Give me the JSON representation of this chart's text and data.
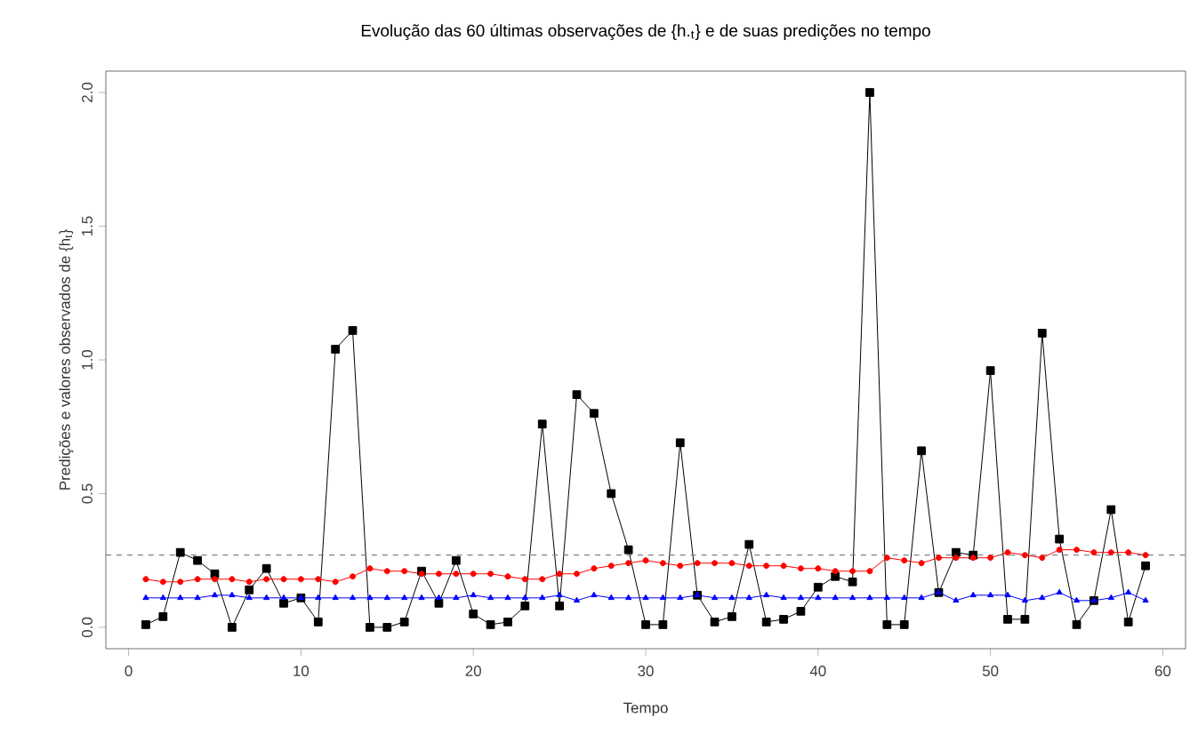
{
  "chart_data": {
    "type": "line",
    "title": "Evolução das 60 últimas observações de {h.$_{t}$} e de suas predições no tempo",
    "xlabel": "Tempo",
    "ylabel": "Predições e valores observados de {h$_{t}$}",
    "x": [
      1,
      2,
      3,
      4,
      5,
      6,
      7,
      8,
      9,
      10,
      11,
      12,
      13,
      14,
      15,
      16,
      17,
      18,
      19,
      20,
      21,
      22,
      23,
      24,
      25,
      26,
      27,
      28,
      29,
      30,
      31,
      32,
      33,
      34,
      35,
      36,
      37,
      38,
      39,
      40,
      41,
      42,
      43,
      44,
      45,
      46,
      47,
      48,
      49,
      50,
      51,
      52,
      53,
      54,
      55,
      56,
      57,
      58,
      59
    ],
    "series": [
      {
        "color": "#000000",
        "marker": "square",
        "values": [
          0.01,
          0.04,
          0.28,
          0.25,
          0.2,
          0.0,
          0.14,
          0.22,
          0.09,
          0.11,
          0.02,
          1.04,
          1.11,
          0.0,
          0.0,
          0.02,
          0.21,
          0.09,
          0.25,
          0.05,
          0.01,
          0.02,
          0.08,
          0.76,
          0.08,
          0.87,
          0.8,
          0.5,
          0.29,
          0.01,
          0.01,
          0.69,
          0.12,
          0.02,
          0.04,
          0.31,
          0.02,
          0.03,
          0.06,
          0.15,
          0.19,
          0.17,
          2.0,
          0.01,
          0.01,
          0.66,
          0.13,
          0.28,
          0.27,
          0.96,
          0.03,
          0.03,
          1.1,
          0.33,
          0.01,
          0.1,
          0.44,
          0.02,
          0.23
        ]
      },
      {
        "color": "#ff0000",
        "marker": "circle",
        "values": [
          0.18,
          0.17,
          0.17,
          0.18,
          0.18,
          0.18,
          0.17,
          0.18,
          0.18,
          0.18,
          0.18,
          0.17,
          0.19,
          0.22,
          0.21,
          0.21,
          0.2,
          0.2,
          0.2,
          0.2,
          0.2,
          0.19,
          0.18,
          0.18,
          0.2,
          0.2,
          0.22,
          0.23,
          0.24,
          0.25,
          0.24,
          0.23,
          0.24,
          0.24,
          0.24,
          0.23,
          0.23,
          0.23,
          0.22,
          0.22,
          0.21,
          0.21,
          0.21,
          0.26,
          0.25,
          0.24,
          0.26,
          0.26,
          0.26,
          0.26,
          0.28,
          0.27,
          0.26,
          0.29,
          0.29,
          0.28,
          0.28,
          0.28,
          0.27
        ]
      },
      {
        "color": "#0000ff",
        "marker": "triangle",
        "values": [
          0.11,
          0.11,
          0.11,
          0.11,
          0.12,
          0.12,
          0.11,
          0.11,
          0.11,
          0.11,
          0.11,
          0.11,
          0.11,
          0.11,
          0.11,
          0.11,
          0.11,
          0.11,
          0.11,
          0.12,
          0.11,
          0.11,
          0.11,
          0.11,
          0.12,
          0.1,
          0.12,
          0.11,
          0.11,
          0.11,
          0.11,
          0.11,
          0.12,
          0.11,
          0.11,
          0.11,
          0.12,
          0.11,
          0.11,
          0.11,
          0.11,
          0.11,
          0.11,
          0.11,
          0.11,
          0.11,
          0.13,
          0.1,
          0.12,
          0.12,
          0.12,
          0.1,
          0.11,
          0.13,
          0.1,
          0.1,
          0.11,
          0.13,
          0.1
        ]
      }
    ],
    "ref_lines": [
      {
        "axis": "y",
        "value": 0.27,
        "color": "#808080",
        "line_style": "dashed"
      }
    ],
    "xlim": [
      -1.32,
      61.32
    ],
    "ylim": [
      -0.08,
      2.08
    ],
    "xticks": [
      0,
      10,
      20,
      30,
      40,
      50,
      60
    ],
    "yticks": [
      {
        "value": 0,
        "label": "0.0"
      },
      {
        "value": 0.5,
        "label": "0.5"
      },
      {
        "value": 1,
        "label": "1.0"
      },
      {
        "value": 1.5,
        "label": "1.5"
      },
      {
        "value": 2,
        "label": "2.0"
      }
    ],
    "line_style": "solid"
  }
}
